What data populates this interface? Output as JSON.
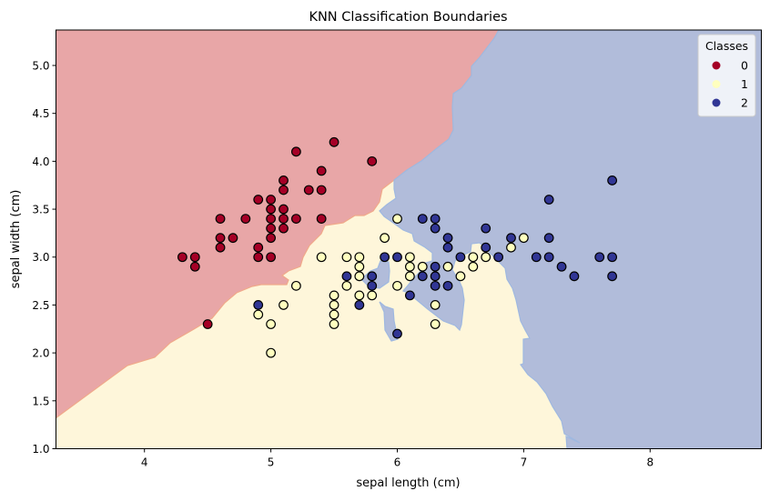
{
  "chart_data": {
    "type": "scatter",
    "title": "KNN Classification Boundaries",
    "xlabel": "sepal length (cm)",
    "ylabel": "sepal width (cm)",
    "xlim": [
      3.3,
      8.88
    ],
    "ylim": [
      1.0,
      5.37
    ],
    "xticks": [
      "4",
      "5",
      "6",
      "7",
      "8"
    ],
    "yticks": [
      "1.0",
      "1.5",
      "2.0",
      "2.5",
      "3.0",
      "3.5",
      "4.0",
      "4.5",
      "5.0"
    ],
    "grid": false,
    "background": "decision regions (filled contour)",
    "region_colors": {
      "0": "#e8a6a7",
      "1": "#fef6da",
      "2": "#b1bcda"
    },
    "legend": {
      "title": "Classes",
      "placement": "top-right",
      "entries": [
        "0",
        "1",
        "2"
      ]
    },
    "series": [
      {
        "name": "0",
        "color": "#a50026",
        "points": [
          [
            4.3,
            3.0
          ],
          [
            4.4,
            3.0
          ],
          [
            4.4,
            2.9
          ],
          [
            4.5,
            2.3
          ],
          [
            4.6,
            3.4
          ],
          [
            4.6,
            3.2
          ],
          [
            4.6,
            3.1
          ],
          [
            4.7,
            3.2
          ],
          [
            4.8,
            3.4
          ],
          [
            4.9,
            3.6
          ],
          [
            4.9,
            3.1
          ],
          [
            4.9,
            3.0
          ],
          [
            5.0,
            3.6
          ],
          [
            5.0,
            3.5
          ],
          [
            5.0,
            3.4
          ],
          [
            5.0,
            3.3
          ],
          [
            5.0,
            3.2
          ],
          [
            5.0,
            3.0
          ],
          [
            5.1,
            3.8
          ],
          [
            5.1,
            3.7
          ],
          [
            5.1,
            3.5
          ],
          [
            5.1,
            3.4
          ],
          [
            5.1,
            3.3
          ],
          [
            5.2,
            4.1
          ],
          [
            5.2,
            3.4
          ],
          [
            5.3,
            3.7
          ],
          [
            5.4,
            3.9
          ],
          [
            5.4,
            3.7
          ],
          [
            5.4,
            3.4
          ],
          [
            5.5,
            4.2
          ],
          [
            5.8,
            4.0
          ]
        ]
      },
      {
        "name": "1",
        "color": "#ffffbf",
        "points": [
          [
            4.9,
            2.4
          ],
          [
            5.0,
            2.3
          ],
          [
            5.0,
            2.0
          ],
          [
            5.1,
            2.5
          ],
          [
            5.2,
            2.7
          ],
          [
            5.4,
            3.0
          ],
          [
            5.5,
            2.6
          ],
          [
            5.5,
            2.5
          ],
          [
            5.5,
            2.4
          ],
          [
            5.5,
            2.3
          ],
          [
            5.6,
            3.0
          ],
          [
            5.6,
            2.7
          ],
          [
            5.7,
            3.0
          ],
          [
            5.7,
            2.9
          ],
          [
            5.7,
            2.8
          ],
          [
            5.7,
            2.6
          ],
          [
            5.8,
            2.6
          ],
          [
            5.9,
            3.2
          ],
          [
            6.0,
            3.4
          ],
          [
            6.0,
            2.7
          ],
          [
            6.1,
            3.0
          ],
          [
            6.1,
            2.9
          ],
          [
            6.1,
            2.8
          ],
          [
            6.2,
            2.9
          ],
          [
            6.3,
            2.5
          ],
          [
            6.3,
            2.3
          ],
          [
            6.4,
            2.9
          ],
          [
            6.5,
            2.8
          ],
          [
            6.6,
            3.0
          ],
          [
            6.6,
            2.9
          ],
          [
            6.7,
            3.0
          ],
          [
            6.9,
            3.1
          ],
          [
            7.0,
            3.2
          ]
        ]
      },
      {
        "name": "2",
        "color": "#313695",
        "points": [
          [
            4.9,
            2.5
          ],
          [
            5.6,
            2.8
          ],
          [
            5.7,
            2.5
          ],
          [
            5.8,
            2.8
          ],
          [
            5.8,
            2.7
          ],
          [
            5.9,
            3.0
          ],
          [
            6.0,
            3.0
          ],
          [
            6.0,
            2.2
          ],
          [
            6.1,
            2.6
          ],
          [
            6.2,
            3.4
          ],
          [
            6.2,
            2.8
          ],
          [
            6.3,
            3.4
          ],
          [
            6.3,
            3.3
          ],
          [
            6.3,
            2.9
          ],
          [
            6.3,
            2.8
          ],
          [
            6.3,
            2.7
          ],
          [
            6.4,
            3.2
          ],
          [
            6.4,
            3.1
          ],
          [
            6.4,
            2.7
          ],
          [
            6.5,
            3.0
          ],
          [
            6.7,
            3.3
          ],
          [
            6.7,
            3.1
          ],
          [
            6.8,
            3.0
          ],
          [
            6.9,
            3.2
          ],
          [
            7.1,
            3.0
          ],
          [
            7.2,
            3.6
          ],
          [
            7.2,
            3.2
          ],
          [
            7.2,
            3.0
          ],
          [
            7.3,
            2.9
          ],
          [
            7.4,
            2.8
          ],
          [
            7.6,
            3.0
          ],
          [
            7.7,
            3.8
          ],
          [
            7.7,
            3.0
          ],
          [
            7.7,
            2.8
          ]
        ]
      }
    ]
  }
}
